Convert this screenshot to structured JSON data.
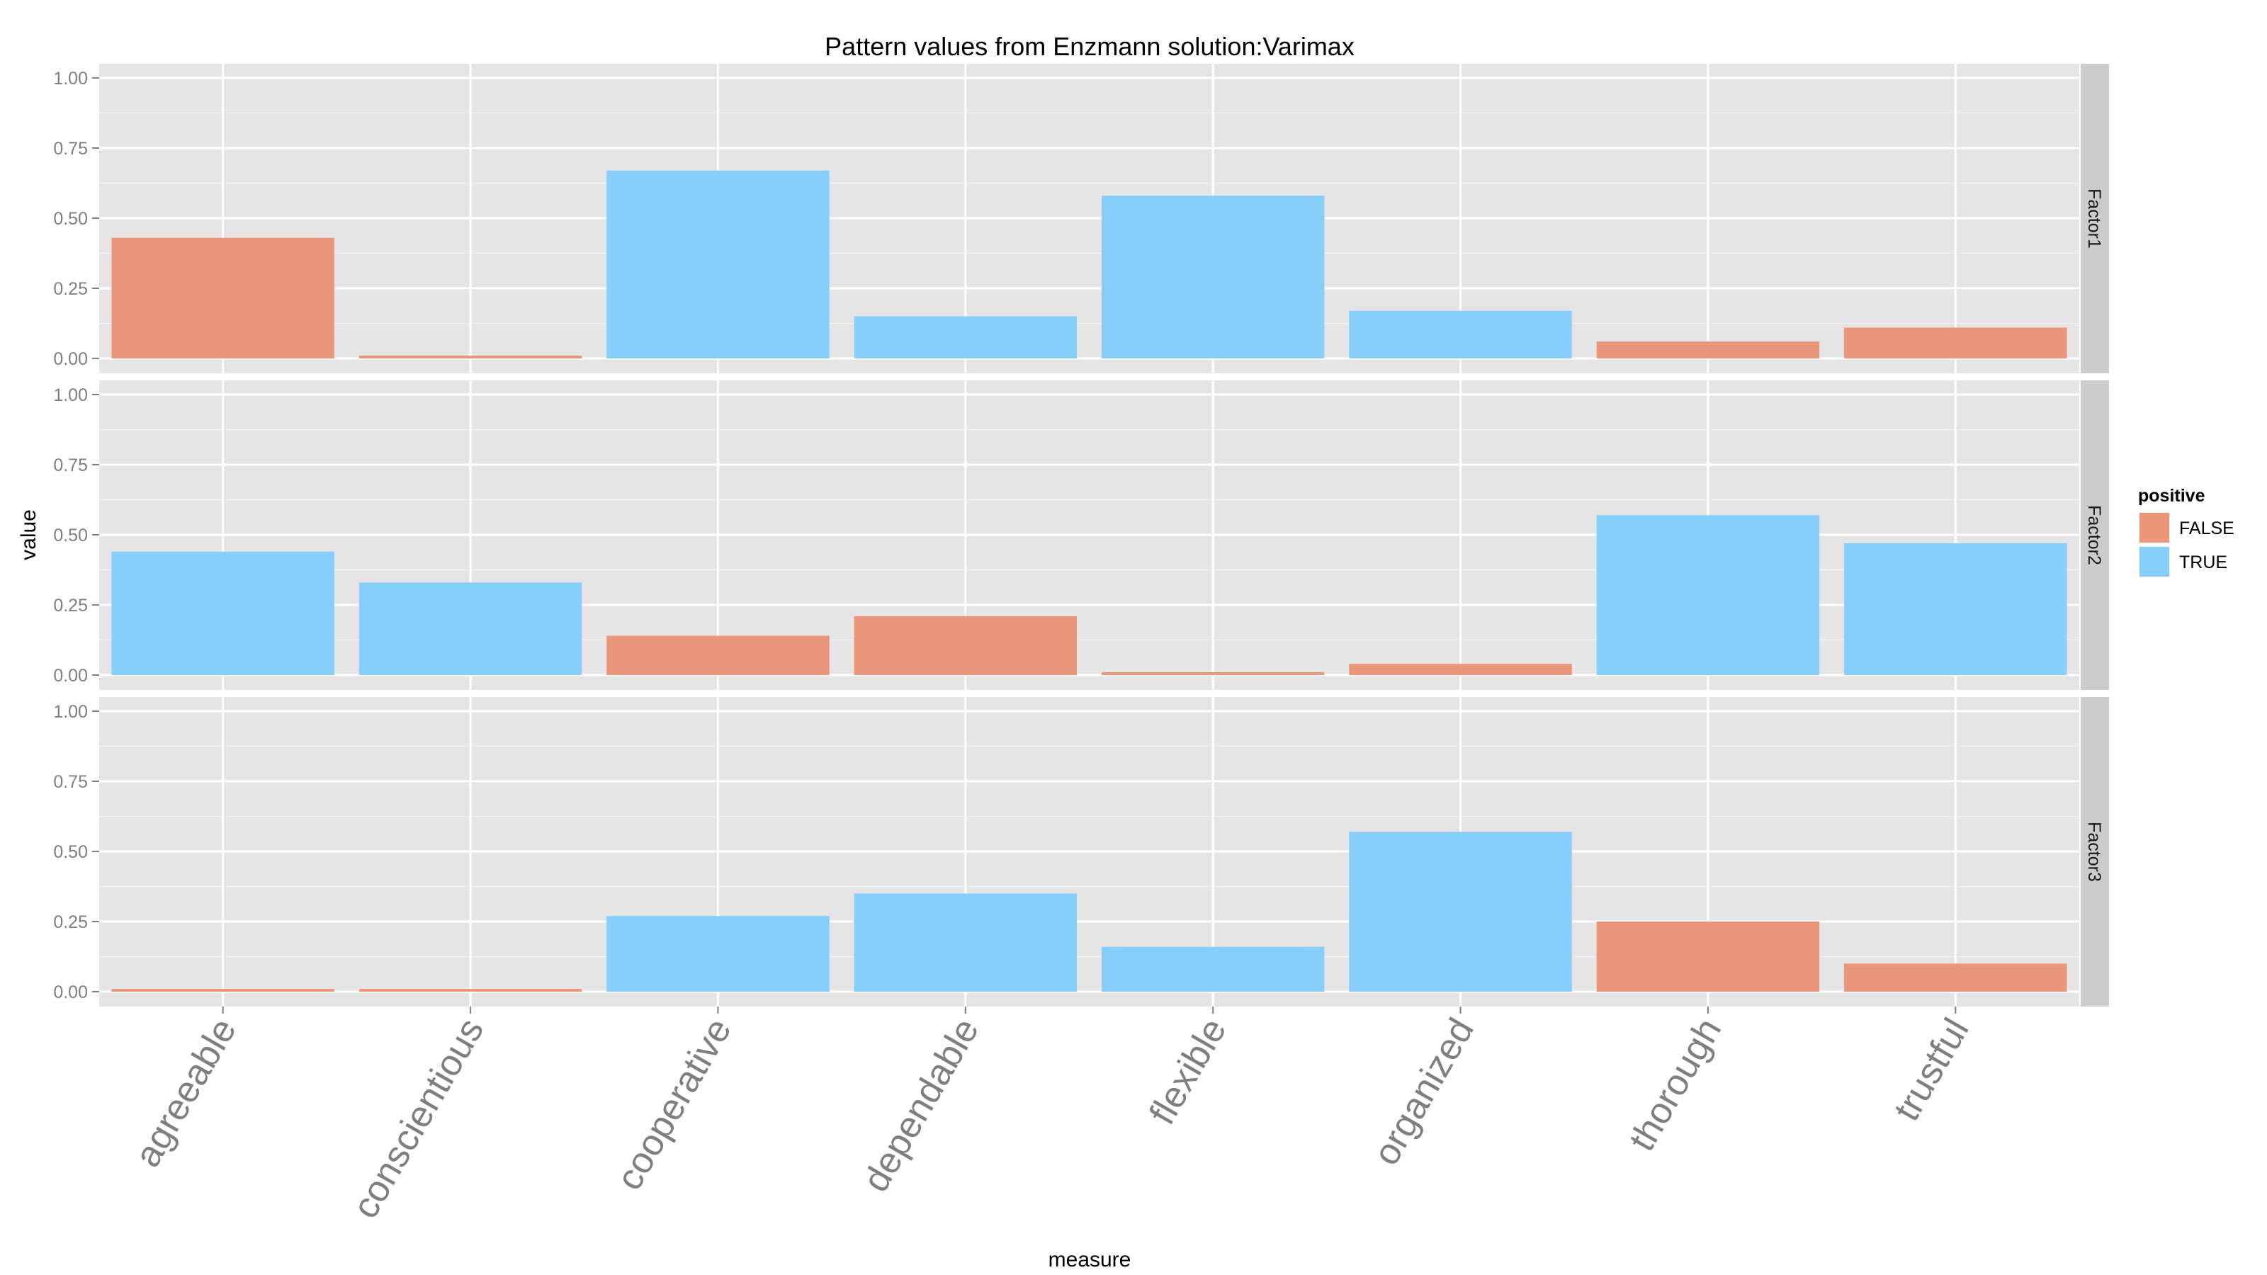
{
  "chart_data": {
    "type": "bar",
    "title": "Pattern values from Enzmann solution:Varimax",
    "xlabel": "measure",
    "ylabel": "value",
    "ylim": [
      0,
      1
    ],
    "yticks": [
      "0.00",
      "0.25",
      "0.50",
      "0.75",
      "1.00"
    ],
    "categories": [
      "agreeable",
      "conscientious",
      "cooperative",
      "dependable",
      "flexible",
      "organized",
      "thorough",
      "trustful"
    ],
    "legend": {
      "title": "positive",
      "placement": "right",
      "entries": [
        {
          "label": "FALSE",
          "color": "#E9967A"
        },
        {
          "label": "TRUE",
          "color": "#87CEFA"
        }
      ]
    },
    "grid": true,
    "panels": [
      {
        "name": "Factor1",
        "values": [
          0.43,
          0.01,
          0.67,
          0.15,
          0.58,
          0.17,
          0.06,
          0.11
        ],
        "positive": [
          false,
          false,
          true,
          true,
          true,
          true,
          false,
          false
        ]
      },
      {
        "name": "Factor2",
        "values": [
          0.44,
          0.33,
          0.14,
          0.21,
          0.01,
          0.04,
          0.57,
          0.47
        ],
        "positive": [
          true,
          true,
          false,
          false,
          false,
          false,
          true,
          true
        ]
      },
      {
        "name": "Factor3",
        "values": [
          0.01,
          0.01,
          0.27,
          0.35,
          0.16,
          0.57,
          0.25,
          0.1
        ],
        "positive": [
          false,
          false,
          true,
          true,
          true,
          true,
          false,
          false
        ]
      }
    ]
  }
}
